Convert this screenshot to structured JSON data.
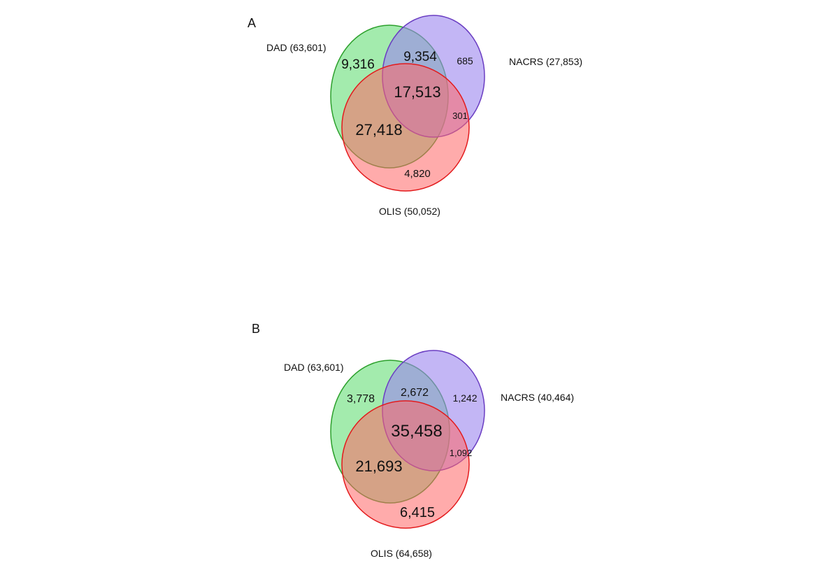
{
  "panels": [
    {
      "letter": "A",
      "sets": [
        {
          "key": "dad",
          "label": "DAD (63,601)",
          "stroke": "#2ca02c",
          "fill": "#66dd77"
        },
        {
          "key": "nacrs",
          "label": "NACRS (27,853)",
          "stroke": "#6a3dc2",
          "fill": "#9b86ee"
        },
        {
          "key": "olis",
          "label": "OLIS (50,052)",
          "stroke": "#e31a1c",
          "fill": "#ff6666"
        }
      ],
      "regions": {
        "dad_only": "9,316",
        "dad_nacrs": "9,354",
        "nacrs_only": "685",
        "all_three": "17,513",
        "nacrs_olis": "301",
        "dad_olis": "27,418",
        "olis_only": "4,820"
      }
    },
    {
      "letter": "B",
      "sets": [
        {
          "key": "dad",
          "label": "DAD (63,601)",
          "stroke": "#2ca02c",
          "fill": "#66dd77"
        },
        {
          "key": "nacrs",
          "label": "NACRS (40,464)",
          "stroke": "#6a3dc2",
          "fill": "#9b86ee"
        },
        {
          "key": "olis",
          "label": "OLIS (64,658)",
          "stroke": "#e31a1c",
          "fill": "#ff6666"
        }
      ],
      "regions": {
        "dad_only": "3,778",
        "dad_nacrs": "2,672",
        "nacrs_only": "1,242",
        "all_three": "35,458",
        "nacrs_olis": "1,092",
        "dad_olis": "21,693",
        "olis_only": "6,415"
      }
    }
  ]
}
